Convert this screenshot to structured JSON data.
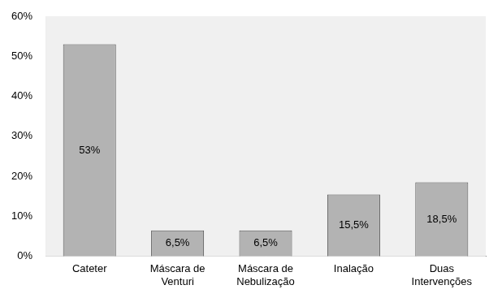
{
  "chart_data": {
    "type": "bar",
    "categories": [
      "Cateter",
      "Máscara de Venturi",
      "Máscara de Nebulização",
      "Inalação",
      "Duas Intervenções"
    ],
    "values": [
      53,
      6.5,
      6.5,
      15.5,
      18.5
    ],
    "value_labels": [
      "53%",
      "6,5%",
      "6,5%",
      "15,5%",
      "18,5%"
    ],
    "data_labels": true,
    "color": "#b3b3b3",
    "ylim": [
      0,
      60
    ],
    "yticks": [
      {
        "value": 0,
        "label": "0%"
      },
      {
        "value": 10,
        "label": "10%"
      },
      {
        "value": 20,
        "label": "20%"
      },
      {
        "value": 30,
        "label": "30%"
      },
      {
        "value": 40,
        "label": "40%"
      },
      {
        "value": 50,
        "label": "50%"
      },
      {
        "value": 60,
        "label": "60%"
      }
    ],
    "grid": false,
    "tick_labels": true
  }
}
